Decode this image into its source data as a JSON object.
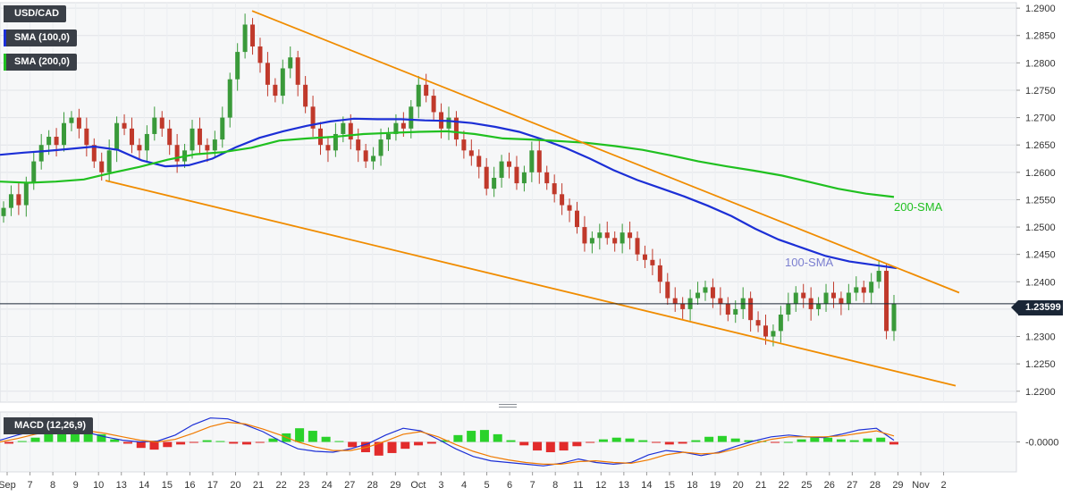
{
  "chart_data": [
    {
      "type": "candlestick",
      "symbol": "USD/CAD",
      "ylim": [
        1.218,
        1.291
      ],
      "y_ticks": [
        "1.2900",
        "1.2850",
        "1.2800",
        "1.2750",
        "1.2700",
        "1.2650",
        "1.2600",
        "1.2550",
        "1.2500",
        "1.2450",
        "1.2400",
        "1.2350",
        "1.2300",
        "1.2250",
        "1.2200"
      ],
      "x_ticks": [
        "Sep",
        "7",
        "8",
        "9",
        "10",
        "13",
        "14",
        "15",
        "16",
        "17",
        "20",
        "21",
        "22",
        "23",
        "24",
        "27",
        "28",
        "29",
        "Oct",
        "3",
        "4",
        "5",
        "6",
        "7",
        "8",
        "11",
        "12",
        "13",
        "14",
        "15",
        "18",
        "19",
        "20",
        "21",
        "22",
        "25",
        "26",
        "27",
        "28",
        "29",
        "Nov",
        "2"
      ],
      "last_price": "1.23599",
      "grid": true,
      "candle_colors": {
        "up": "#3a9a3a",
        "down": "#c0392b"
      },
      "closes": [
        1.2535,
        1.256,
        1.254,
        1.258,
        1.262,
        1.265,
        1.2665,
        1.265,
        1.269,
        1.27,
        1.268,
        1.265,
        1.262,
        1.26,
        1.264,
        1.269,
        1.268,
        1.265,
        1.264,
        1.267,
        1.27,
        1.268,
        1.265,
        1.262,
        1.264,
        1.268,
        1.265,
        1.264,
        1.266,
        1.27,
        1.277,
        1.282,
        1.287,
        1.283,
        1.28,
        1.276,
        1.274,
        1.279,
        1.281,
        1.276,
        1.272,
        1.268,
        1.265,
        1.264,
        1.267,
        1.269,
        1.266,
        1.264,
        1.262,
        1.263,
        1.266,
        1.267,
        1.269,
        1.268,
        1.272,
        1.276,
        1.274,
        1.271,
        1.268,
        1.27,
        1.266,
        1.264,
        1.263,
        1.261,
        1.257,
        1.259,
        1.262,
        1.261,
        1.258,
        1.26,
        1.264,
        1.26,
        1.258,
        1.256,
        1.254,
        1.253,
        1.25,
        1.247,
        1.248,
        1.249,
        1.248,
        1.247,
        1.249,
        1.248,
        1.245,
        1.244,
        1.243,
        1.24,
        1.237,
        1.236,
        1.235,
        1.237,
        1.238,
        1.239,
        1.237,
        1.236,
        1.234,
        1.235,
        1.237,
        1.233,
        1.232,
        1.23,
        1.231,
        1.234,
        1.236,
        1.238,
        1.237,
        1.235,
        1.236,
        1.238,
        1.237,
        1.236,
        1.238,
        1.239,
        1.238,
        1.24,
        1.242,
        1.231,
        1.236
      ],
      "series": [
        {
          "name": "100-SMA",
          "color": "#1c2fd6",
          "values": [
            1.2632,
            1.2636,
            1.2639,
            1.2643,
            1.2647,
            1.2641,
            1.2622,
            1.2611,
            1.2613,
            1.2625,
            1.2646,
            1.2663,
            1.2675,
            1.2685,
            1.2693,
            1.2698,
            1.2697,
            1.2697,
            1.2695,
            1.2694,
            1.269,
            1.2683,
            1.2674,
            1.266,
            1.2644,
            1.2625,
            1.2604,
            1.2586,
            1.2571,
            1.2556,
            1.2539,
            1.252,
            1.2497,
            1.2477,
            1.2462,
            1.2447,
            1.2437,
            1.2431,
            1.2425
          ]
        },
        {
          "name": "200-SMA",
          "color": "#20c020",
          "values": [
            1.2583,
            1.2581,
            1.2583,
            1.2587,
            1.2599,
            1.261,
            1.2623,
            1.2633,
            1.2637,
            1.2645,
            1.2658,
            1.2662,
            1.2665,
            1.267,
            1.2672,
            1.2674,
            1.2675,
            1.267,
            1.2662,
            1.266,
            1.2657,
            1.2654,
            1.2648,
            1.2641,
            1.2631,
            1.262,
            1.2611,
            1.2603,
            1.2594,
            1.2582,
            1.257,
            1.2561,
            1.2555
          ]
        },
        {
          "name": "Upper trend line",
          "color": "#f08c00",
          "values": [
            1.2895,
            1.238
          ]
        },
        {
          "name": "Lower trend line",
          "color": "#f08c00",
          "values": [
            1.2585,
            1.221
          ]
        }
      ],
      "annotations": [
        {
          "text": "200-SMA",
          "color": "#20c020"
        },
        {
          "text": "100-SMA",
          "color": "#7b7fd0"
        }
      ],
      "legend": [
        {
          "label": "USD/CAD",
          "color": "#3a3f47"
        },
        {
          "label": "SMA (100,0)",
          "color": "#1c2fd6"
        },
        {
          "label": "SMA (200,0)",
          "color": "#20c020"
        }
      ]
    },
    {
      "type": "histogram+line",
      "title": "MACD (12,26,9)",
      "ylim": [
        -0.0035,
        0.0035
      ],
      "y_ticks": [
        "0.0000"
      ],
      "histogram": [
        -0.0002,
        0.0001,
        0.0005,
        0.0011,
        0.0015,
        0.0016,
        0.0014,
        0.0009,
        0.0003,
        -0.0002,
        -0.0007,
        -0.0009,
        -0.0006,
        -0.0003,
        -0.0001,
        0.0002,
        0.0001,
        -0.0002,
        -0.0003,
        -0.0001,
        0.0004,
        0.001,
        0.0016,
        0.0013,
        0.0006,
        0.0001,
        -0.0006,
        -0.0012,
        -0.0016,
        -0.0013,
        -0.0008,
        -0.0004,
        -0.0002,
        0.0002,
        0.0008,
        0.0013,
        0.0014,
        0.0009,
        0.0002,
        -0.0004,
        -0.001,
        -0.0012,
        -0.001,
        -0.0005,
        -0.0001,
        0.0003,
        0.0005,
        0.0004,
        0.0002,
        -0.0001,
        -0.0003,
        -0.0002,
        0.0002,
        0.0006,
        0.0007,
        0.0004,
        0.0002,
        0.0001,
        -0.0001,
        0.0,
        0.0003,
        0.0006,
        0.0005,
        0.0003,
        0.0002,
        0.0004,
        0.0005,
        -0.0003
      ],
      "series": [
        {
          "name": "MACD",
          "color": "#1c2fd6",
          "values": [
            0.0002,
            0.0008,
            0.0013,
            0.0016,
            0.0015,
            0.0011,
            0.0006,
            0.0002,
            0.0,
            0.0001,
            0.0008,
            0.002,
            0.0028,
            0.0027,
            0.002,
            0.0012,
            0.0001,
            -0.0008,
            -0.0011,
            -0.0012,
            -0.0008,
            -0.0002,
            0.0008,
            0.0016,
            0.0013,
            0.0003,
            -0.0008,
            -0.0017,
            -0.0022,
            -0.0024,
            -0.0026,
            -0.0028,
            -0.0025,
            -0.002,
            -0.0024,
            -0.0026,
            -0.0024,
            -0.0015,
            -0.001,
            -0.0012,
            -0.0016,
            -0.0012,
            -0.0005,
            0.0001,
            0.0006,
            0.0008,
            0.0006,
            0.0005,
            0.0009,
            0.0014,
            0.0016,
            0.0002
          ]
        },
        {
          "name": "Signal",
          "color": "#f07a00",
          "values": [
            0.0,
            0.0004,
            0.0009,
            0.0013,
            0.0015,
            0.0013,
            0.001,
            0.0006,
            0.0002,
            0.0,
            0.0003,
            0.001,
            0.0018,
            0.0023,
            0.0021,
            0.0015,
            0.0008,
            0.0,
            -0.0006,
            -0.001,
            -0.001,
            -0.0006,
            0.0001,
            0.0009,
            0.0012,
            0.0006,
            -0.0003,
            -0.0011,
            -0.0017,
            -0.0021,
            -0.0024,
            -0.0026,
            -0.0026,
            -0.0023,
            -0.0022,
            -0.0024,
            -0.0025,
            -0.0021,
            -0.0015,
            -0.0012,
            -0.0014,
            -0.0013,
            -0.0008,
            -0.0002,
            0.0003,
            0.0006,
            0.0006,
            0.0006,
            0.0007,
            0.001,
            0.0013,
            0.0007
          ]
        }
      ],
      "histogram_colors": {
        "positive": "#20d020",
        "negative": "#e02020"
      }
    }
  ]
}
